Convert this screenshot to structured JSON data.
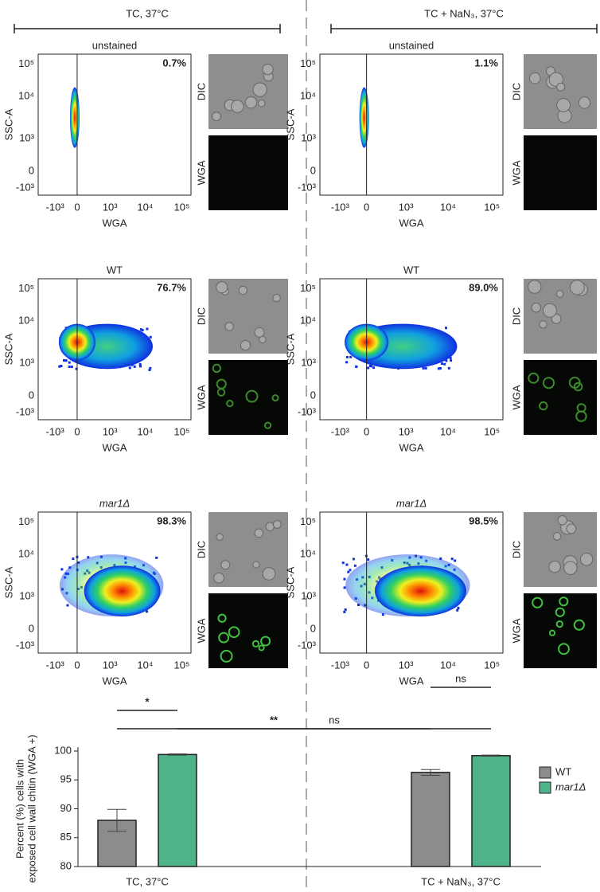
{
  "conditions": [
    {
      "label": "TC, 37°C"
    },
    {
      "label": "TC + NaN₃, 37°C"
    }
  ],
  "panels": [
    {
      "title": "unstained",
      "gate_percent": "0.7%"
    },
    {
      "title": "unstained",
      "gate_percent": "1.1%"
    },
    {
      "title": "WT",
      "gate_percent": "76.7%"
    },
    {
      "title": "WT",
      "gate_percent": "89.0%"
    },
    {
      "title": "mar1Δ",
      "gate_percent": "98.3%"
    },
    {
      "title": "mar1Δ",
      "gate_percent": "98.5%"
    }
  ],
  "flow_axes": {
    "x_label": "WGA",
    "y_label": "SSC-A",
    "x_ticks": [
      "-10³",
      "0",
      "10³",
      "10⁴",
      "10⁵"
    ],
    "y_ticks": [
      "10⁵",
      "10⁴",
      "10³",
      "0",
      "-10³"
    ],
    "image_labels": [
      "DIC",
      "WGA"
    ]
  },
  "chart_data": {
    "type": "bar",
    "y_label": [
      "Percent (%) cells with",
      "exposed cell wall chitin (WGA +)"
    ],
    "categories": [
      "TC, 37°C",
      "TC + NaN₃, 37°C"
    ],
    "series": [
      {
        "name": "WT",
        "color": "#8c8c8c",
        "values": [
          88.0,
          96.3
        ],
        "errors": [
          1.9,
          0.5
        ]
      },
      {
        "name": "mar1Δ",
        "color": "#4fb38a",
        "values": [
          99.4,
          99.2
        ],
        "errors": [
          0.1,
          0.1
        ]
      }
    ],
    "ylim": [
      80,
      100
    ],
    "yticks": [
      80,
      85,
      90,
      95,
      100
    ],
    "annotations": [
      "**",
      "ns",
      "*",
      "ns"
    ],
    "legend": "right"
  }
}
